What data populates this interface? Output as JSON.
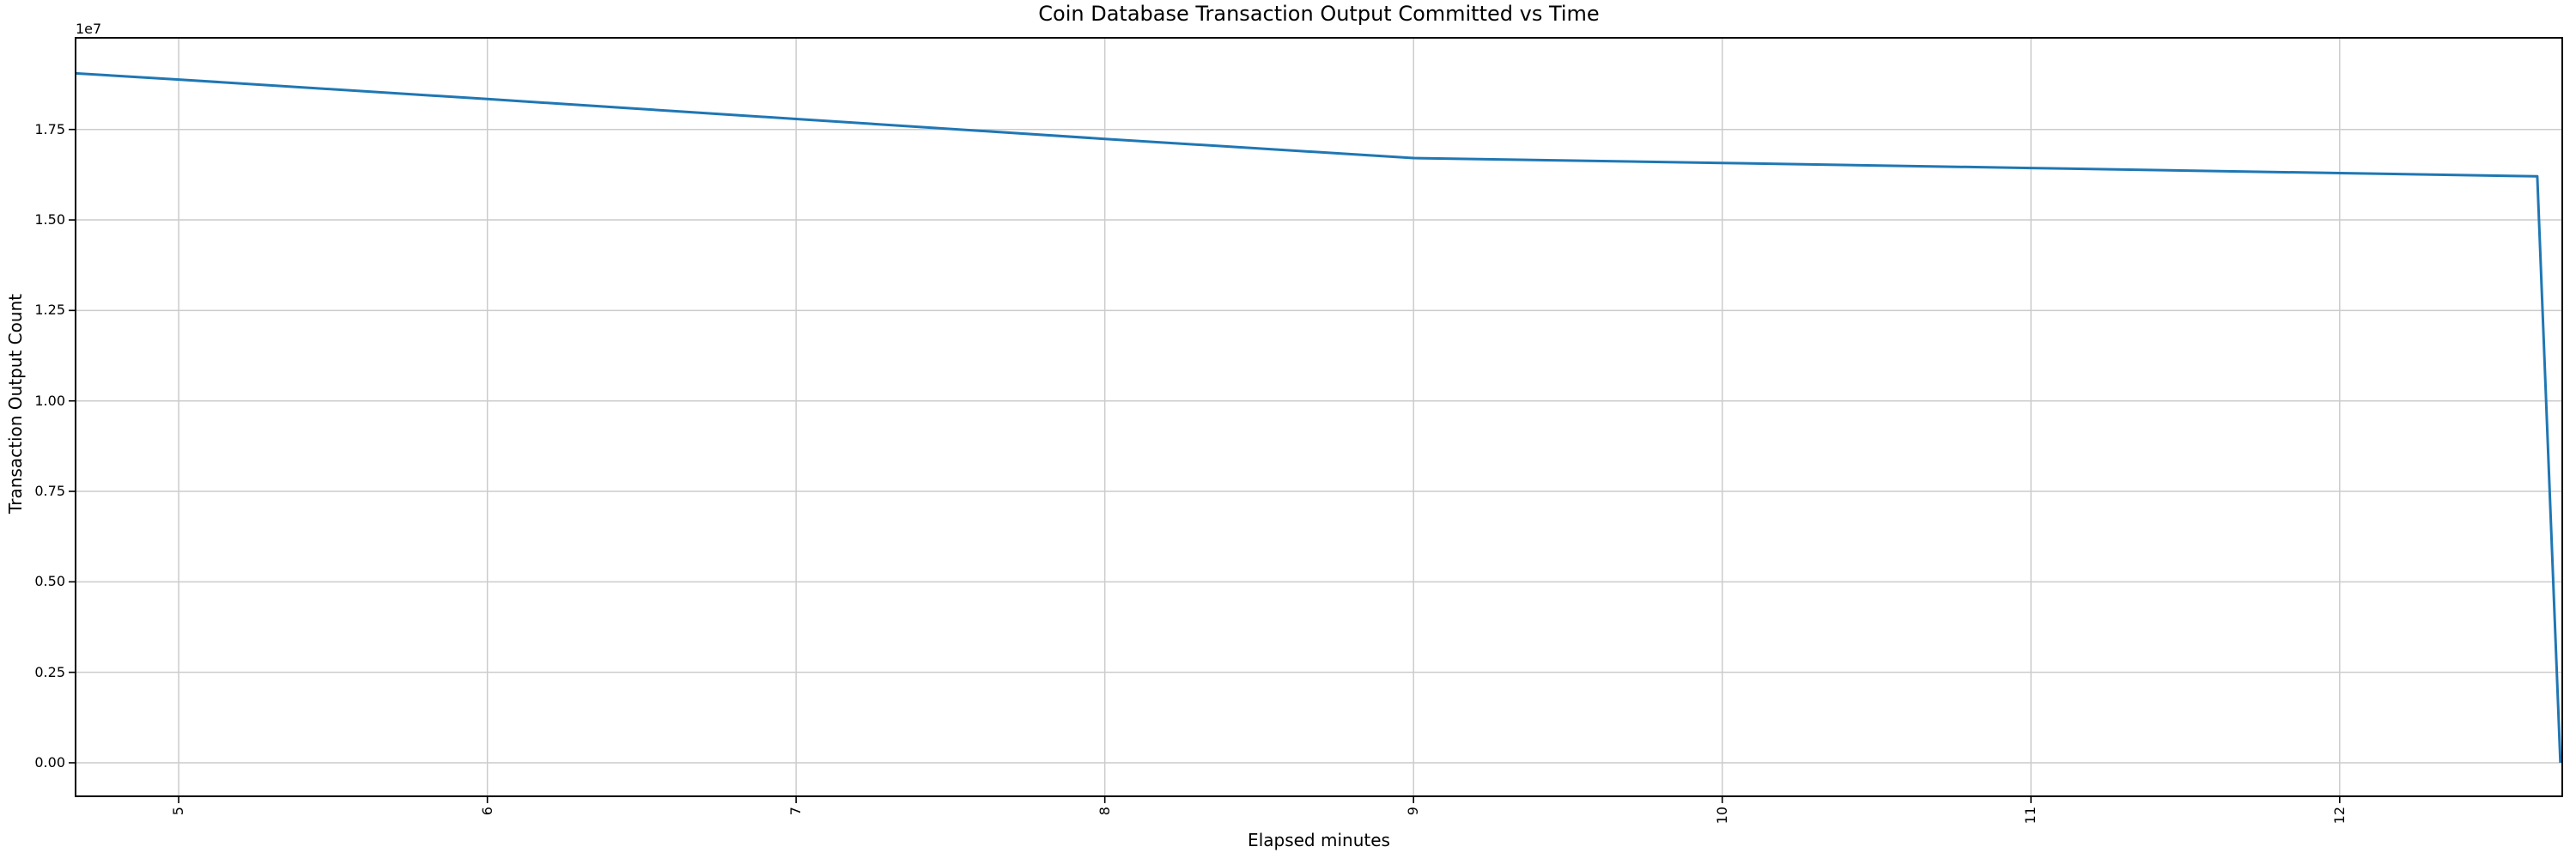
{
  "chart_data": {
    "type": "line",
    "title": "Coin Database Transaction Output Committed vs Time",
    "xlabel": "Elapsed minutes",
    "ylabel": "Transaction Output Count",
    "y_offset_text": "1e7",
    "grid": true,
    "legend": false,
    "xlim": [
      4.666,
      12.721
    ],
    "ylim": [
      -926000,
      20033000
    ],
    "x_ticks": [
      {
        "label": "5",
        "value": 5
      },
      {
        "label": "6",
        "value": 6
      },
      {
        "label": "7",
        "value": 7
      },
      {
        "label": "8",
        "value": 8
      },
      {
        "label": "9",
        "value": 9
      },
      {
        "label": "10",
        "value": 10
      },
      {
        "label": "11",
        "value": 11
      },
      {
        "label": "12",
        "value": 12
      }
    ],
    "y_ticks": [
      {
        "label": "0.00",
        "value": 0
      },
      {
        "label": "0.25",
        "value": 2500000
      },
      {
        "label": "0.50",
        "value": 5000000
      },
      {
        "label": "0.75",
        "value": 7500000
      },
      {
        "label": "1.00",
        "value": 10000000
      },
      {
        "label": "1.25",
        "value": 12500000
      },
      {
        "label": "1.50",
        "value": 15000000
      },
      {
        "label": "1.75",
        "value": 17500000
      }
    ],
    "colors": {
      "line": "#1f77b4",
      "grid": "#cccccc",
      "spine": "#000000",
      "background": "#ffffff"
    },
    "series": [
      {
        "name": "Transaction Output Count",
        "points": [
          [
            4.666,
            19050000
          ],
          [
            5.0,
            18880000
          ],
          [
            6.0,
            18340000
          ],
          [
            7.0,
            17790000
          ],
          [
            8.0,
            17240000
          ],
          [
            9.0,
            16710000
          ],
          [
            10.0,
            16575000
          ],
          [
            11.0,
            16435000
          ],
          [
            12.0,
            16295000
          ],
          [
            12.64,
            16205000
          ],
          [
            12.715,
            0
          ]
        ]
      }
    ]
  }
}
